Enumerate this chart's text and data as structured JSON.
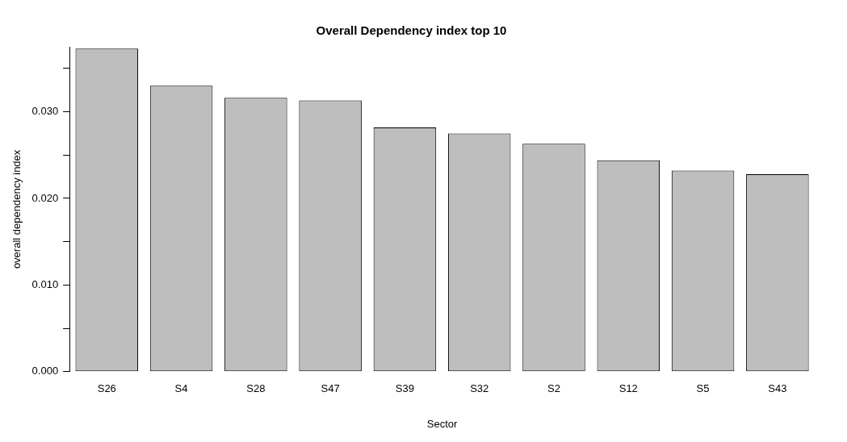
{
  "chart_data": {
    "type": "bar",
    "title": "Overall Dependency index top 10",
    "xlabel": "Sector",
    "ylabel": "overall dependency index",
    "categories": [
      "S26",
      "S4",
      "S28",
      "S47",
      "S39",
      "S32",
      "S2",
      "S12",
      "S5",
      "S43"
    ],
    "values": [
      0.0373,
      0.033,
      0.0316,
      0.0313,
      0.0282,
      0.0275,
      0.0263,
      0.0244,
      0.0232,
      0.0228
    ],
    "color": "#bebebe",
    "ylim": [
      0,
      0.0375
    ],
    "yticks": [
      {
        "value": 0,
        "label": "0.000"
      },
      {
        "value": 0.005,
        "label": null
      },
      {
        "value": 0.01,
        "label": "0.010"
      },
      {
        "value": 0.015,
        "label": null
      },
      {
        "value": 0.02,
        "label": "0.020"
      },
      {
        "value": 0.025,
        "label": null
      },
      {
        "value": 0.03,
        "label": "0.030"
      },
      {
        "value": 0.035,
        "label": null
      }
    ],
    "grid": false,
    "legend": false
  }
}
